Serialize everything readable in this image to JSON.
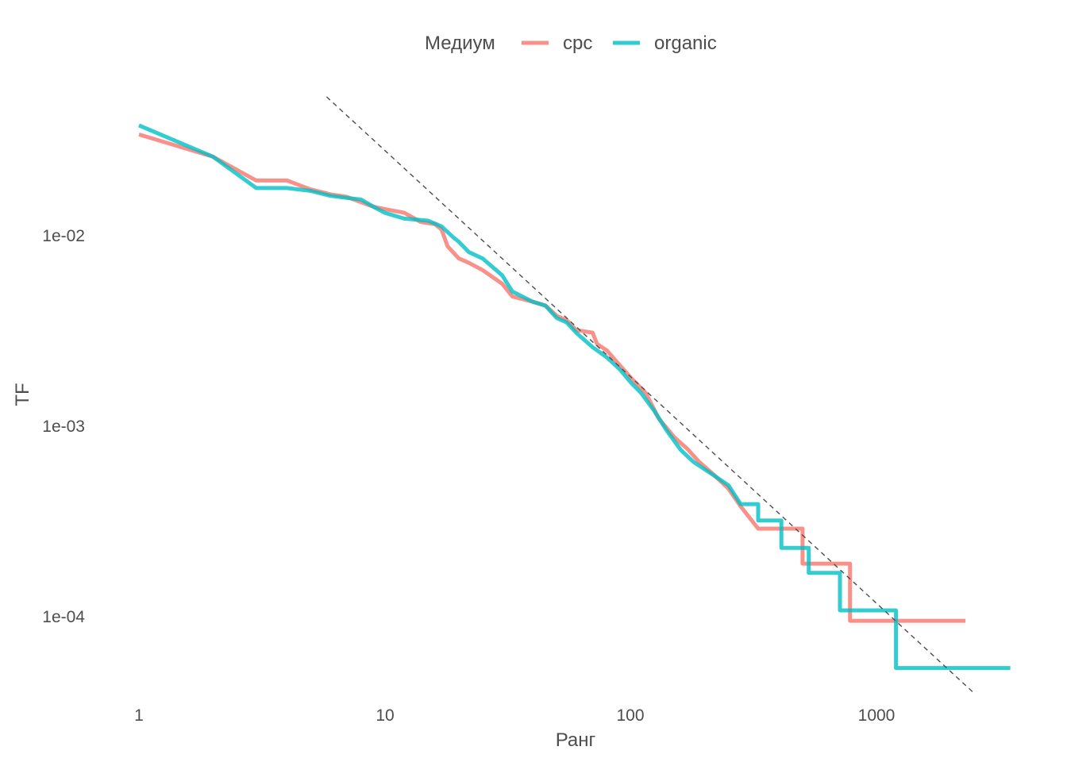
{
  "chart_data": {
    "type": "line",
    "xlabel": "Ранг",
    "ylabel": "TF",
    "x_scale": "log",
    "y_scale": "log",
    "xlim": [
      1,
      3500
    ],
    "ylim": [
      4e-05,
      0.06
    ],
    "x_ticks": [
      {
        "value": 1,
        "label": "1"
      },
      {
        "value": 10,
        "label": "10"
      },
      {
        "value": 100,
        "label": "100"
      },
      {
        "value": 1000,
        "label": "1000"
      }
    ],
    "y_ticks": [
      {
        "value": 0.01,
        "label": "1e-02"
      },
      {
        "value": 0.001,
        "label": "1e-03"
      },
      {
        "value": 0.0001,
        "label": "1e-04"
      }
    ],
    "grid": false,
    "legend": {
      "title": "Медиум",
      "position": "top"
    },
    "series": [
      {
        "name": "cpc",
        "color": "#F8766D",
        "points": [
          [
            1,
            0.034
          ],
          [
            2,
            0.026
          ],
          [
            3,
            0.0195
          ],
          [
            4,
            0.0195
          ],
          [
            5,
            0.0175
          ],
          [
            6,
            0.0165
          ],
          [
            7,
            0.016
          ],
          [
            8,
            0.015
          ],
          [
            9,
            0.0142
          ],
          [
            10,
            0.0138
          ],
          [
            12,
            0.0132
          ],
          [
            14,
            0.0118
          ],
          [
            16,
            0.0115
          ],
          [
            17,
            0.0108
          ],
          [
            18,
            0.0088
          ],
          [
            20,
            0.0076
          ],
          [
            22,
            0.0072
          ],
          [
            25,
            0.0066
          ],
          [
            30,
            0.0056
          ],
          [
            33,
            0.0048
          ],
          [
            40,
            0.0045
          ],
          [
            45,
            0.0043
          ],
          [
            50,
            0.0038
          ],
          [
            55,
            0.0036
          ],
          [
            60,
            0.0032
          ],
          [
            70,
            0.0031
          ],
          [
            73,
            0.0027
          ],
          [
            80,
            0.0025
          ],
          [
            90,
            0.0021
          ],
          [
            100,
            0.0018
          ],
          [
            115,
            0.0015
          ],
          [
            130,
            0.0011
          ],
          [
            150,
            0.00088
          ],
          [
            170,
            0.00076
          ],
          [
            190,
            0.00065
          ],
          [
            220,
            0.00055
          ],
          [
            250,
            0.00047
          ],
          [
            280,
            0.00038
          ],
          [
            330,
            0.00029
          ],
          [
            380,
            0.00029
          ],
          [
            500,
            0.00029
          ],
          [
            500,
            0.00019
          ],
          [
            780,
            0.00019
          ],
          [
            780,
            9.52e-05
          ],
          [
            2300,
            9.52e-05
          ]
        ]
      },
      {
        "name": "organic",
        "color": "#00BFC4",
        "points": [
          [
            1,
            0.038
          ],
          [
            2,
            0.026
          ],
          [
            3,
            0.0178
          ],
          [
            4,
            0.0178
          ],
          [
            5,
            0.0172
          ],
          [
            6,
            0.0162
          ],
          [
            7,
            0.0158
          ],
          [
            8,
            0.0155
          ],
          [
            9,
            0.0142
          ],
          [
            10,
            0.0132
          ],
          [
            12,
            0.0123
          ],
          [
            15,
            0.012
          ],
          [
            17,
            0.0112
          ],
          [
            19,
            0.0098
          ],
          [
            20,
            0.0093
          ],
          [
            22,
            0.0082
          ],
          [
            25,
            0.0076
          ],
          [
            30,
            0.0062
          ],
          [
            33,
            0.0051
          ],
          [
            40,
            0.0045
          ],
          [
            45,
            0.0043
          ],
          [
            50,
            0.0037
          ],
          [
            55,
            0.0035
          ],
          [
            60,
            0.0031
          ],
          [
            70,
            0.0026
          ],
          [
            80,
            0.0023
          ],
          [
            90,
            0.002
          ],
          [
            100,
            0.0017
          ],
          [
            110,
            0.0015
          ],
          [
            125,
            0.0012
          ],
          [
            140,
            0.00095
          ],
          [
            160,
            0.00075
          ],
          [
            180,
            0.00065
          ],
          [
            210,
            0.00057
          ],
          [
            250,
            0.00049
          ],
          [
            280,
            0.00039
          ],
          [
            330,
            0.00039
          ],
          [
            330,
            0.00032
          ],
          [
            410,
            0.00032
          ],
          [
            410,
            0.00023
          ],
          [
            530,
            0.00023
          ],
          [
            530,
            0.00017
          ],
          [
            710,
            0.00017
          ],
          [
            710,
            0.000108
          ],
          [
            1200,
            0.000108
          ],
          [
            1200,
            5.38e-05
          ],
          [
            3500,
            5.38e-05
          ]
        ]
      }
    ],
    "reference_line": {
      "style": "dashed",
      "color": "#4d4d4d",
      "points": [
        [
          5.8,
          0.0536
        ],
        [
          2500,
          3.96e-05
        ]
      ]
    }
  }
}
